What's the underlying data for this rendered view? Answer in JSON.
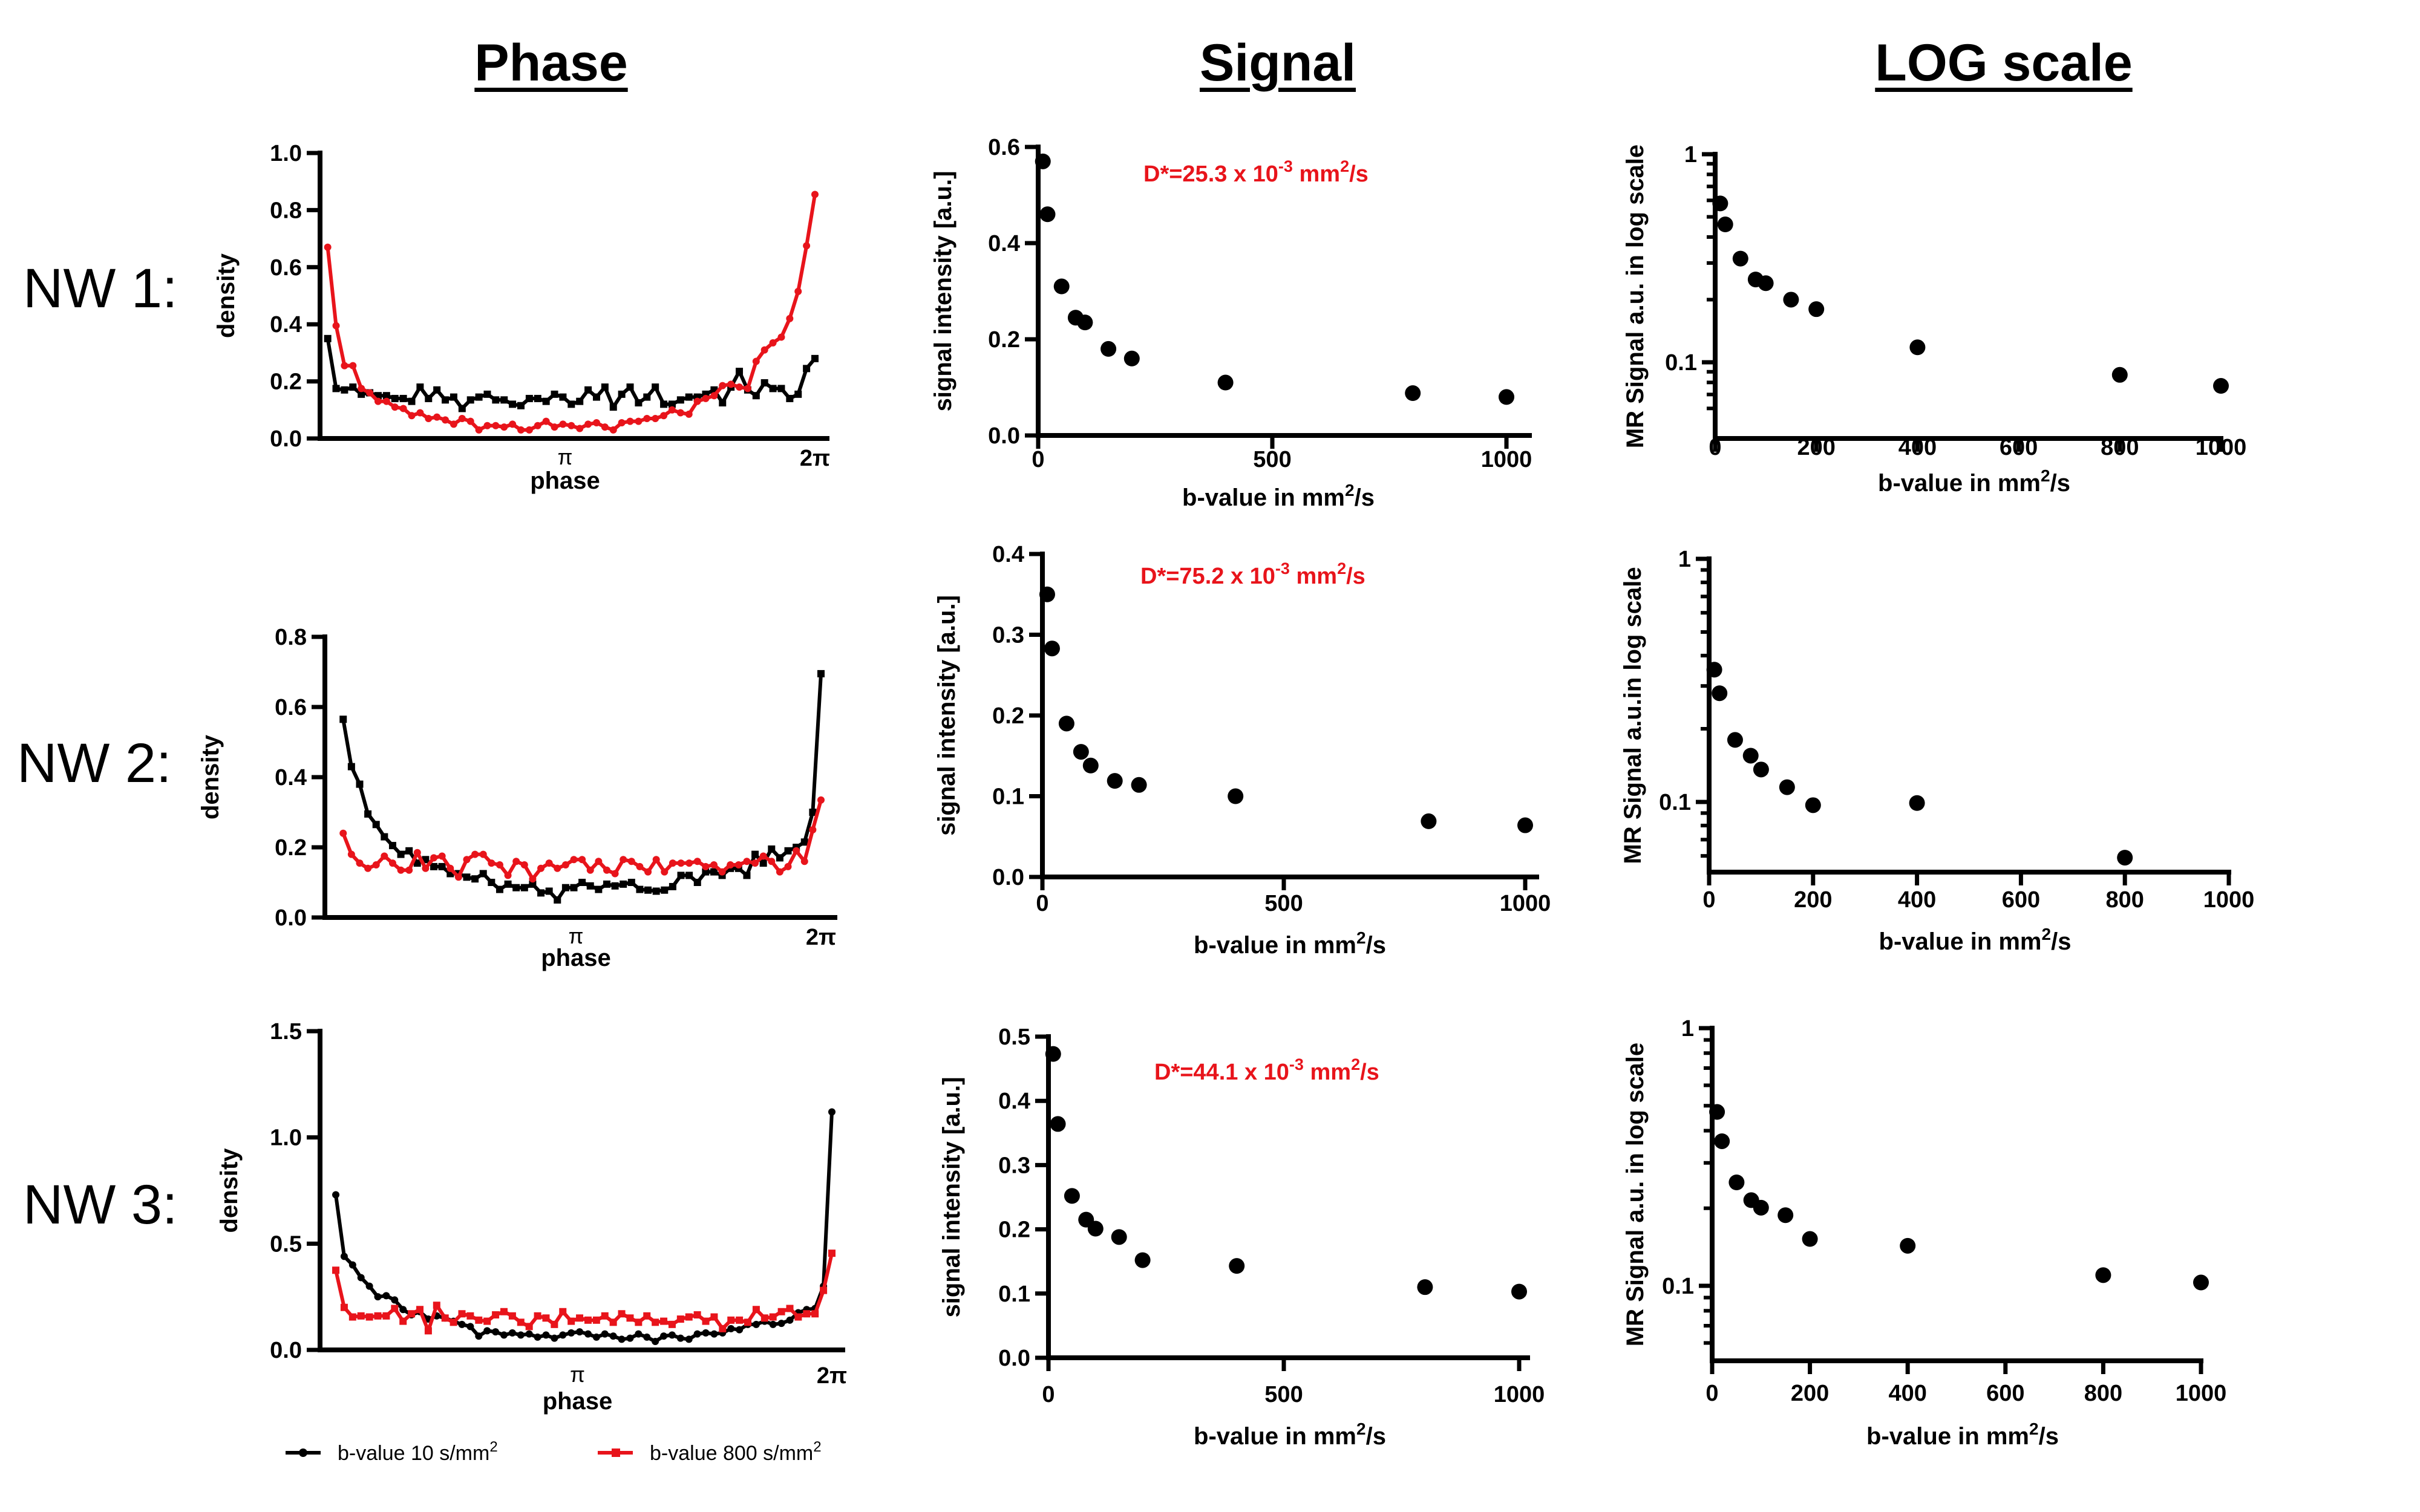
{
  "column_headers": [
    "Phase",
    "Signal",
    "LOG scale"
  ],
  "row_labels": [
    "NW 1:",
    "NW 2:",
    "NW 3:"
  ],
  "legend": [
    {
      "label": "b-value 10 s/mm",
      "sup": "2",
      "color": "#000000",
      "marker": "circle"
    },
    {
      "label": "b-value 800 s/mm",
      "sup": "2",
      "color": "#e8141b",
      "marker": "square"
    }
  ],
  "chart_data": [
    {
      "id": "phase1",
      "type": "line",
      "ylabel": "density",
      "xlabel": "phase",
      "x_ticks": [
        "π",
        "2π"
      ],
      "ylim": [
        0,
        1.0
      ],
      "y_ticks": [
        "0.0",
        "0.2",
        "0.4",
        "0.6",
        "0.8",
        "1.0"
      ],
      "y_tick_values": [
        0,
        0.2,
        0.4,
        0.6,
        0.8,
        1.0
      ],
      "series": [
        {
          "name": "b-value 10 s/mm2",
          "color": "#000000",
          "marker": "square",
          "values": [
            0.35,
            0.175,
            0.17,
            0.18,
            0.155,
            0.16,
            0.15,
            0.15,
            0.14,
            0.14,
            0.13,
            0.18,
            0.14,
            0.17,
            0.135,
            0.145,
            0.105,
            0.135,
            0.145,
            0.155,
            0.135,
            0.135,
            0.12,
            0.115,
            0.14,
            0.14,
            0.13,
            0.155,
            0.145,
            0.12,
            0.13,
            0.17,
            0.145,
            0.18,
            0.11,
            0.155,
            0.18,
            0.125,
            0.145,
            0.18,
            0.12,
            0.12,
            0.135,
            0.145,
            0.145,
            0.155,
            0.17,
            0.125,
            0.18,
            0.235,
            0.17,
            0.15,
            0.195,
            0.175,
            0.175,
            0.14,
            0.155,
            0.245,
            0.28
          ]
        },
        {
          "name": "b-value 800 s/mm2",
          "color": "#e8141b",
          "marker": "circle",
          "values": [
            0.67,
            0.395,
            0.255,
            0.255,
            0.175,
            0.16,
            0.13,
            0.13,
            0.11,
            0.105,
            0.08,
            0.09,
            0.07,
            0.075,
            0.065,
            0.05,
            0.07,
            0.06,
            0.03,
            0.045,
            0.045,
            0.04,
            0.05,
            0.03,
            0.03,
            0.045,
            0.06,
            0.04,
            0.05,
            0.045,
            0.035,
            0.05,
            0.055,
            0.04,
            0.03,
            0.055,
            0.06,
            0.06,
            0.07,
            0.07,
            0.08,
            0.1,
            0.09,
            0.085,
            0.13,
            0.14,
            0.15,
            0.185,
            0.19,
            0.18,
            0.175,
            0.27,
            0.31,
            0.335,
            0.355,
            0.42,
            0.515,
            0.675,
            0.855
          ]
        }
      ]
    },
    {
      "id": "signal1",
      "type": "scatter",
      "ylabel": "signal intensity [a.u.]",
      "xlabel": "b-value in mm",
      "xlabel_sup": "2",
      "xlabel_suffix": "/s",
      "xlim": [
        0,
        1000
      ],
      "x_ticks": [
        "0",
        "500",
        "1000"
      ],
      "x_tick_values": [
        0,
        500,
        1000
      ],
      "ylim": [
        0,
        0.6
      ],
      "y_ticks": [
        "0.0",
        "0.2",
        "0.4",
        "0.6"
      ],
      "y_tick_values": [
        0,
        0.2,
        0.4,
        0.6
      ],
      "annotation": {
        "text": "D*=25.3 x 10",
        "exp": "-3",
        "unit": " mm",
        "unit_sup": "2",
        "suffix": "/s",
        "color": "#e8141b"
      },
      "x": [
        10,
        20,
        50,
        80,
        100,
        150,
        200,
        400,
        800,
        1000
      ],
      "y": [
        0.57,
        0.46,
        0.31,
        0.245,
        0.235,
        0.18,
        0.16,
        0.11,
        0.088,
        0.08
      ]
    },
    {
      "id": "log1",
      "type": "scatter",
      "yscale": "log",
      "ylabel": "MR Signal a.u. in log scale",
      "xlabel": "b-value in mm",
      "xlabel_sup": "2",
      "xlabel_suffix": "/s",
      "xlim": [
        0,
        1000
      ],
      "x_ticks": [
        "0",
        "200",
        "400",
        "600",
        "800",
        "1000"
      ],
      "x_tick_values": [
        0,
        200,
        400,
        600,
        800,
        1000
      ],
      "ylim": [
        0.05,
        1
      ],
      "y_ticks": [
        "1",
        "0.1"
      ],
      "y_tick_values": [
        1,
        0.1
      ],
      "x": [
        10,
        20,
        50,
        80,
        100,
        150,
        200,
        400,
        800,
        1000
      ],
      "y": [
        0.58,
        0.46,
        0.315,
        0.25,
        0.24,
        0.2,
        0.18,
        0.118,
        0.087,
        0.077
      ]
    },
    {
      "id": "phase2",
      "type": "line",
      "ylabel": "density",
      "xlabel": "phase",
      "x_ticks": [
        "π",
        "2π"
      ],
      "ylim": [
        0,
        0.8
      ],
      "y_ticks": [
        "0.0",
        "0.2",
        "0.4",
        "0.6",
        "0.8"
      ],
      "y_tick_values": [
        0,
        0.2,
        0.4,
        0.6,
        0.8
      ],
      "series": [
        {
          "name": "b-value 10 s/mm2",
          "color": "#000000",
          "marker": "square",
          "values": [
            0.565,
            0.43,
            0.38,
            0.295,
            0.265,
            0.23,
            0.205,
            0.18,
            0.19,
            0.155,
            0.165,
            0.145,
            0.145,
            0.125,
            0.125,
            0.115,
            0.11,
            0.125,
            0.1,
            0.08,
            0.095,
            0.085,
            0.085,
            0.095,
            0.07,
            0.075,
            0.05,
            0.085,
            0.085,
            0.1,
            0.09,
            0.08,
            0.095,
            0.09,
            0.095,
            0.1,
            0.08,
            0.078,
            0.075,
            0.078,
            0.088,
            0.12,
            0.12,
            0.1,
            0.13,
            0.13,
            0.12,
            0.14,
            0.14,
            0.12,
            0.18,
            0.155,
            0.195,
            0.17,
            0.19,
            0.2,
            0.215,
            0.3,
            0.695
          ]
        },
        {
          "name": "b-value 800 s/mm2",
          "color": "#e8141b",
          "marker": "circle",
          "values": [
            0.24,
            0.18,
            0.155,
            0.14,
            0.15,
            0.175,
            0.155,
            0.135,
            0.135,
            0.185,
            0.14,
            0.17,
            0.175,
            0.14,
            0.115,
            0.165,
            0.18,
            0.18,
            0.155,
            0.15,
            0.12,
            0.16,
            0.15,
            0.11,
            0.14,
            0.155,
            0.14,
            0.15,
            0.165,
            0.165,
            0.135,
            0.16,
            0.135,
            0.125,
            0.165,
            0.16,
            0.145,
            0.13,
            0.165,
            0.13,
            0.155,
            0.155,
            0.155,
            0.16,
            0.145,
            0.15,
            0.13,
            0.15,
            0.15,
            0.16,
            0.155,
            0.175,
            0.16,
            0.13,
            0.145,
            0.19,
            0.16,
            0.25,
            0.335
          ]
        }
      ]
    },
    {
      "id": "signal2",
      "type": "scatter",
      "ylabel": "signal intensity [a.u.]",
      "xlabel": "b-value in mm",
      "xlabel_sup": "2",
      "xlabel_suffix": "/s",
      "xlim": [
        0,
        1000
      ],
      "x_ticks": [
        "0",
        "500",
        "1000"
      ],
      "x_tick_values": [
        0,
        500,
        1000
      ],
      "ylim": [
        0,
        0.4
      ],
      "y_ticks": [
        "0.0",
        "0.1",
        "0.2",
        "0.3",
        "0.4"
      ],
      "y_tick_values": [
        0,
        0.1,
        0.2,
        0.3,
        0.4
      ],
      "annotation": {
        "text": "D*=75.2 x 10",
        "exp": "-3",
        "unit": " mm",
        "unit_sup": "2",
        "suffix": "/s",
        "color": "#e8141b"
      },
      "x": [
        10,
        20,
        50,
        80,
        100,
        150,
        200,
        400,
        800,
        1000
      ],
      "y": [
        0.35,
        0.283,
        0.19,
        0.155,
        0.138,
        0.119,
        0.114,
        0.1,
        0.069,
        0.064
      ]
    },
    {
      "id": "log2",
      "type": "scatter",
      "yscale": "log",
      "ylabel": "MR Signal a.u.in log scale",
      "xlabel": "b-value in mm",
      "xlabel_sup": "2",
      "xlabel_suffix": "/s",
      "xlim": [
        0,
        1000
      ],
      "x_ticks": [
        "0",
        "200",
        "400",
        "600",
        "800",
        "1000"
      ],
      "x_tick_values": [
        0,
        200,
        400,
        600,
        800,
        1000
      ],
      "ylim": [
        0.05,
        1
      ],
      "y_ticks": [
        "1",
        "0.1"
      ],
      "y_tick_values": [
        1,
        0.1
      ],
      "x": [
        10,
        20,
        50,
        80,
        100,
        150,
        200,
        400,
        800
      ],
      "y": [
        0.35,
        0.28,
        0.18,
        0.155,
        0.136,
        0.115,
        0.097,
        0.099,
        0.059
      ]
    },
    {
      "id": "phase3",
      "type": "line",
      "ylabel": "density",
      "xlabel": "phase",
      "x_ticks": [
        "π",
        "2π"
      ],
      "ylim": [
        0,
        1.5
      ],
      "y_ticks": [
        "0.0",
        "0.5",
        "1.0",
        "1.5"
      ],
      "y_tick_values": [
        0,
        0.5,
        1.0,
        1.5
      ],
      "series": [
        {
          "name": "b-value 10 s/mm2",
          "color": "#000000",
          "marker": "circle",
          "values": [
            0.73,
            0.44,
            0.4,
            0.34,
            0.3,
            0.25,
            0.255,
            0.235,
            0.19,
            0.165,
            0.18,
            0.145,
            0.16,
            0.15,
            0.135,
            0.12,
            0.11,
            0.065,
            0.09,
            0.085,
            0.07,
            0.08,
            0.07,
            0.075,
            0.06,
            0.07,
            0.055,
            0.07,
            0.08,
            0.085,
            0.075,
            0.06,
            0.075,
            0.065,
            0.05,
            0.055,
            0.075,
            0.06,
            0.04,
            0.065,
            0.07,
            0.055,
            0.05,
            0.075,
            0.08,
            0.075,
            0.08,
            0.1,
            0.095,
            0.12,
            0.12,
            0.135,
            0.12,
            0.125,
            0.14,
            0.175,
            0.19,
            0.195,
            0.3,
            1.12
          ]
        },
        {
          "name": "b-value 800 s/mm2",
          "color": "#e8141b",
          "marker": "square",
          "values": [
            0.375,
            0.2,
            0.155,
            0.16,
            0.155,
            0.16,
            0.16,
            0.195,
            0.135,
            0.17,
            0.19,
            0.09,
            0.21,
            0.15,
            0.13,
            0.17,
            0.16,
            0.14,
            0.135,
            0.165,
            0.18,
            0.16,
            0.13,
            0.11,
            0.16,
            0.15,
            0.12,
            0.18,
            0.135,
            0.15,
            0.14,
            0.14,
            0.16,
            0.13,
            0.17,
            0.15,
            0.13,
            0.16,
            0.13,
            0.135,
            0.12,
            0.145,
            0.155,
            0.165,
            0.135,
            0.155,
            0.1,
            0.14,
            0.14,
            0.13,
            0.19,
            0.15,
            0.155,
            0.18,
            0.195,
            0.155,
            0.17,
            0.17,
            0.28,
            0.455
          ]
        }
      ]
    },
    {
      "id": "signal3",
      "type": "scatter",
      "ylabel": "signal intensity [a.u.]",
      "xlabel": "b-value in mm",
      "xlabel_sup": "2",
      "xlabel_suffix": "/s",
      "xlim": [
        0,
        1000
      ],
      "x_ticks": [
        "0",
        "500",
        "1000"
      ],
      "x_tick_values": [
        0,
        500,
        1000
      ],
      "ylim": [
        0,
        0.5
      ],
      "y_ticks": [
        "0.0",
        "0.1",
        "0.2",
        "0.3",
        "0.4",
        "0.5"
      ],
      "y_tick_values": [
        0,
        0.1,
        0.2,
        0.3,
        0.4,
        0.5
      ],
      "annotation": {
        "text": "D*=44.1 x 10",
        "exp": "-3",
        "unit": " mm",
        "unit_sup": "2",
        "suffix": "/s",
        "color": "#e8141b"
      },
      "x": [
        10,
        20,
        50,
        80,
        100,
        150,
        200,
        400,
        800,
        1000
      ],
      "y": [
        0.473,
        0.364,
        0.252,
        0.215,
        0.201,
        0.188,
        0.152,
        0.143,
        0.11,
        0.103
      ]
    },
    {
      "id": "log3",
      "type": "scatter",
      "yscale": "log",
      "ylabel": "MR Signal a.u. in log scale",
      "xlabel": "b-value in mm",
      "xlabel_sup": "2",
      "xlabel_suffix": "/s",
      "xlim": [
        0,
        1000
      ],
      "x_ticks": [
        "0",
        "200",
        "400",
        "600",
        "800",
        "1000"
      ],
      "x_tick_values": [
        0,
        200,
        400,
        600,
        800,
        1000
      ],
      "ylim": [
        0.05,
        1
      ],
      "y_ticks": [
        "1",
        "0.1"
      ],
      "y_tick_values": [
        1,
        0.1
      ],
      "x": [
        10,
        20,
        50,
        80,
        100,
        150,
        200,
        400,
        800,
        1000
      ],
      "y": [
        0.473,
        0.364,
        0.252,
        0.215,
        0.201,
        0.188,
        0.152,
        0.143,
        0.11,
        0.103
      ]
    }
  ]
}
